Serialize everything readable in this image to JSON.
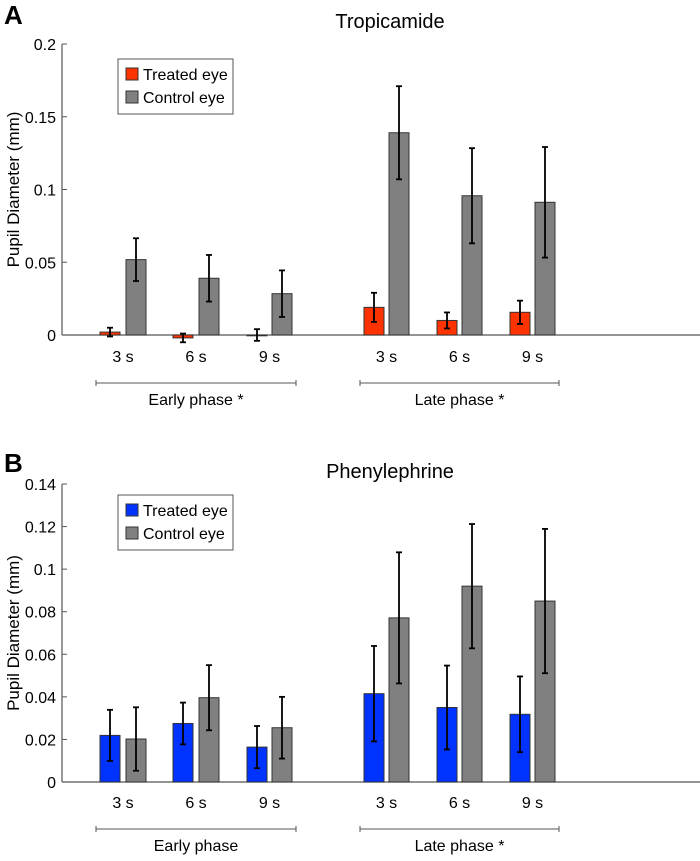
{
  "chart_data": [
    {
      "type": "bar",
      "panel_label": "A",
      "title": "Tropicamide",
      "ylabel": "Pupil Diameter (mm)",
      "xlabel": "",
      "ylim": [
        0,
        0.2
      ],
      "yticks": [
        "0",
        "0.05",
        "0.1",
        "0.15",
        "0.2"
      ],
      "ytick_values": [
        0,
        0.05,
        0.1,
        0.15,
        0.2
      ],
      "categories": [
        "3 s",
        "6 s",
        "9 s",
        "3 s",
        "6 s",
        "9 s"
      ],
      "groups": [
        {
          "label": "Early phase *"
        },
        {
          "label": "Late phase *"
        }
      ],
      "legend": {
        "placement": "top-left"
      },
      "series": [
        {
          "name": "Treated eye",
          "color": "#ff3300",
          "values": [
            0.002,
            -0.002,
            0.0,
            0.019,
            0.01,
            0.0156
          ],
          "errors": [
            0.003,
            0.003,
            0.004,
            0.01,
            0.0055,
            0.008
          ]
        },
        {
          "name": "Control eye",
          "color": "#808080",
          "values": [
            0.0518,
            0.039,
            0.0284,
            0.139,
            0.0957,
            0.0912
          ],
          "errors": [
            0.0147,
            0.016,
            0.016,
            0.032,
            0.0327,
            0.038
          ]
        }
      ]
    },
    {
      "type": "bar",
      "panel_label": "B",
      "title": "Phenylephrine",
      "ylabel": "Pupil Diameter (mm)",
      "xlabel": "",
      "ylim": [
        0,
        0.14
      ],
      "yticks": [
        "0",
        "0.02",
        "0.04",
        "0.06",
        "0.08",
        "0.1",
        "0.12",
        "0.14"
      ],
      "ytick_values": [
        0,
        0.02,
        0.04,
        0.06,
        0.08,
        0.1,
        0.12,
        0.14
      ],
      "categories": [
        "3 s",
        "6 s",
        "9 s",
        "3 s",
        "6 s",
        "9 s"
      ],
      "groups": [
        {
          "label": "Early phase"
        },
        {
          "label": "Late phase *"
        }
      ],
      "legend": {
        "placement": "top-left"
      },
      "series": [
        {
          "name": "Treated eye",
          "color": "#0033ff",
          "values": [
            0.0219,
            0.0275,
            0.0164,
            0.0415,
            0.035,
            0.0318
          ],
          "errors": [
            0.012,
            0.0098,
            0.0099,
            0.0224,
            0.0197,
            0.0178
          ]
        },
        {
          "name": "Control eye",
          "color": "#808080",
          "values": [
            0.0202,
            0.0396,
            0.0255,
            0.0771,
            0.092,
            0.085
          ],
          "errors": [
            0.0149,
            0.0153,
            0.0145,
            0.0308,
            0.0292,
            0.0339
          ]
        }
      ]
    }
  ]
}
